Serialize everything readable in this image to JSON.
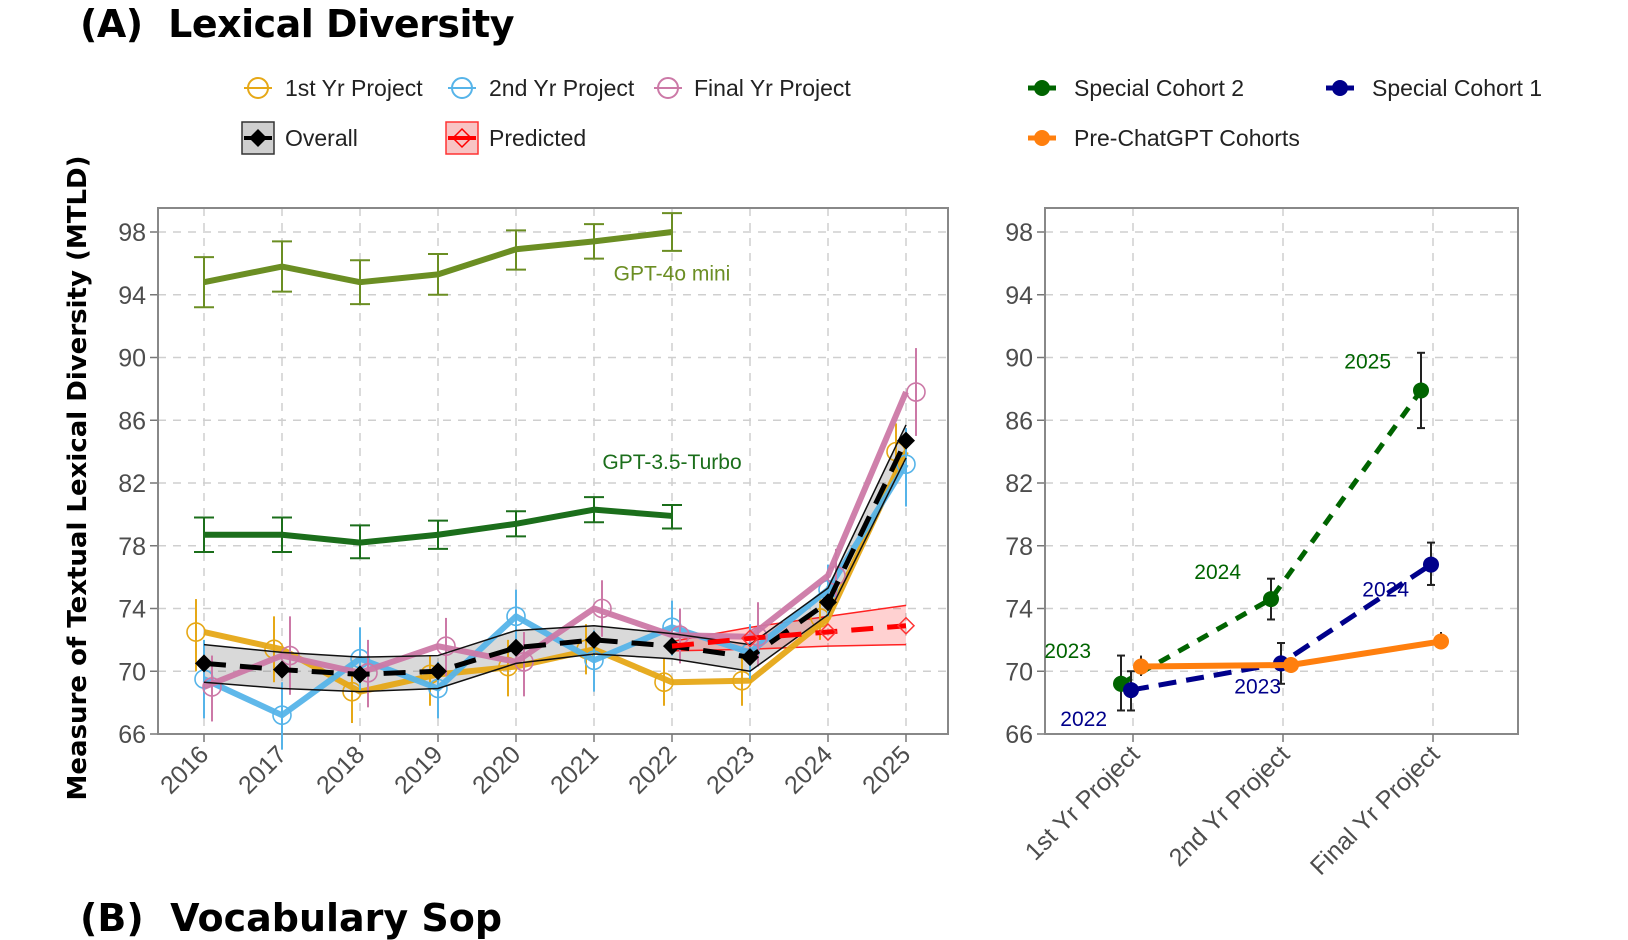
{
  "figure": {
    "title": "(A)  Lexical Diversity",
    "next_panel_title_partial": "(B)  Vocabulary Sop"
  },
  "legend": {
    "left": [
      {
        "label": "1st Yr Project",
        "color": "#E6A817",
        "marker": "open-circle"
      },
      {
        "label": "2nd Yr Project",
        "color": "#56B4E9",
        "marker": "open-circle"
      },
      {
        "label": "Final Yr Project",
        "color": "#CC79A7",
        "marker": "open-circle"
      },
      {
        "label": "Overall",
        "color": "#000000",
        "marker": "filled-diamond-band"
      },
      {
        "label": "Predicted",
        "color": "#FF0000",
        "marker": "open-diamond-band"
      }
    ],
    "right": [
      {
        "label": "Special Cohort 2",
        "color": "#006400",
        "marker": "filled-circle"
      },
      {
        "label": "Special Cohort 1",
        "color": "#00008B",
        "marker": "filled-circle"
      },
      {
        "label": "Pre-ChatGPT Cohorts",
        "color": "#FF7F0E",
        "marker": "filled-circle"
      }
    ]
  },
  "chart_data": [
    {
      "type": "line",
      "panel": "left",
      "title": "",
      "xlabel": "",
      "ylabel": "Measure of Textual Lexical Diversity (MTLD)",
      "ylim": [
        66,
        99.5
      ],
      "yticks": [
        66,
        70,
        74,
        78,
        82,
        86,
        90,
        94,
        98
      ],
      "x": [
        "2016",
        "2017",
        "2018",
        "2019",
        "2020",
        "2021",
        "2022",
        "2023",
        "2024",
        "2025"
      ],
      "grid": true,
      "series": [
        {
          "name": "GPT-4o mini",
          "color": "#6B8E23",
          "style": "solid",
          "values": [
            94.8,
            95.8,
            94.8,
            95.3,
            96.9,
            97.4,
            98.0,
            null,
            null,
            null
          ],
          "err_low": [
            93.2,
            94.2,
            93.4,
            94.0,
            95.6,
            96.3,
            96.8,
            null,
            null,
            null
          ],
          "err_high": [
            96.4,
            97.4,
            96.2,
            96.6,
            98.1,
            98.5,
            99.2,
            null,
            null,
            null
          ]
        },
        {
          "name": "GPT-3.5-Turbo",
          "color": "#1B6E1B",
          "style": "solid",
          "values": [
            78.7,
            78.7,
            78.2,
            78.7,
            79.4,
            80.3,
            79.9,
            null,
            null,
            null
          ],
          "err_low": [
            77.6,
            77.6,
            77.2,
            77.8,
            78.6,
            79.5,
            79.1,
            null,
            null,
            null
          ],
          "err_high": [
            79.8,
            79.8,
            79.3,
            79.6,
            80.2,
            81.1,
            80.6,
            null,
            null,
            null
          ]
        },
        {
          "name": "1st Yr Project",
          "color": "#E6A817",
          "style": "solid",
          "marker": "open-circle",
          "values": [
            72.5,
            71.4,
            68.7,
            69.8,
            70.3,
            71.4,
            69.3,
            69.4,
            73.4,
            84.0
          ],
          "err_low": [
            70.0,
            69.3,
            66.7,
            67.8,
            68.4,
            69.8,
            67.8,
            67.8,
            72.0,
            82.5
          ],
          "err_high": [
            74.6,
            73.5,
            70.7,
            71.0,
            72.0,
            73.0,
            70.8,
            71.0,
            74.8,
            85.8
          ]
        },
        {
          "name": "2nd Yr Project",
          "color": "#56B4E9",
          "style": "solid",
          "marker": "open-circle",
          "values": [
            69.5,
            67.2,
            70.8,
            68.9,
            73.5,
            70.7,
            72.8,
            71.2,
            75.2,
            83.2
          ],
          "err_low": [
            67.0,
            65.0,
            68.8,
            67.0,
            71.8,
            68.7,
            71.0,
            69.5,
            73.5,
            80.5
          ],
          "err_high": [
            72.0,
            69.3,
            72.8,
            70.6,
            75.2,
            72.6,
            74.5,
            73.0,
            76.8,
            85.5
          ]
        },
        {
          "name": "Final Yr Project",
          "color": "#CC79A7",
          "style": "solid",
          "marker": "open-circle",
          "values": [
            69.0,
            71.0,
            69.9,
            71.6,
            70.6,
            74.0,
            72.3,
            72.2,
            76.1,
            87.8
          ],
          "err_low": [
            66.8,
            68.5,
            67.7,
            69.7,
            68.4,
            72.2,
            70.5,
            70.3,
            74.5,
            85.0
          ],
          "err_high": [
            71.0,
            73.5,
            72.0,
            73.4,
            72.5,
            75.8,
            74.0,
            74.4,
            77.8,
            90.6
          ]
        },
        {
          "name": "Overall",
          "color": "#000000",
          "style": "dashed",
          "marker": "filled-diamond",
          "values": [
            70.5,
            70.1,
            69.8,
            70.0,
            71.5,
            72.0,
            71.6,
            70.9,
            74.4,
            84.7
          ],
          "band_low": [
            69.3,
            68.9,
            68.7,
            68.9,
            70.5,
            71.1,
            70.8,
            70.0,
            73.6,
            83.6
          ],
          "band_high": [
            71.7,
            71.2,
            70.9,
            71.0,
            72.6,
            72.9,
            72.4,
            71.7,
            75.3,
            85.7
          ]
        },
        {
          "name": "Predicted",
          "color": "#FF0000",
          "style": "dashed",
          "marker": "open-diamond",
          "values": [
            null,
            null,
            null,
            null,
            null,
            null,
            71.6,
            72.1,
            72.5,
            72.9
          ],
          "band_low": [
            null,
            null,
            null,
            null,
            null,
            null,
            71.3,
            71.4,
            71.6,
            71.7
          ],
          "band_high": [
            null,
            null,
            null,
            null,
            null,
            null,
            71.9,
            72.8,
            73.5,
            74.2
          ]
        }
      ],
      "annotations": [
        {
          "text": "GPT-4o mini",
          "x": "2022",
          "y": 94.9,
          "color": "#6B8E23"
        },
        {
          "text": "GPT-3.5-Turbo",
          "x": "2022",
          "y": 82.9,
          "color": "#1B6E1B"
        }
      ]
    },
    {
      "type": "line",
      "panel": "right",
      "title": "",
      "xlabel": "",
      "ylabel": "",
      "ylim": [
        66,
        99.5
      ],
      "yticks": [
        66,
        70,
        74,
        78,
        82,
        86,
        90,
        94,
        98
      ],
      "categories": [
        "1st Yr Project",
        "2nd Yr Project",
        "Final Yr Project"
      ],
      "grid": true,
      "series": [
        {
          "name": "Special Cohort 2",
          "color": "#006400",
          "style": "dotted",
          "values": [
            69.2,
            74.6,
            87.9
          ],
          "err_low": [
            67.5,
            73.3,
            85.5
          ],
          "err_high": [
            71.0,
            75.9,
            90.3
          ],
          "point_labels": [
            "2023",
            "2024",
            "2025"
          ]
        },
        {
          "name": "Special Cohort 1",
          "color": "#00008B",
          "style": "dashed",
          "values": [
            68.8,
            70.5,
            76.8
          ],
          "err_low": [
            67.5,
            69.2,
            75.5
          ],
          "err_high": [
            70.0,
            71.8,
            78.2
          ],
          "point_labels": [
            "2022",
            "2023",
            "2024"
          ]
        },
        {
          "name": "Pre-ChatGPT Cohorts",
          "color": "#FF7F0E",
          "style": "solid",
          "values": [
            70.3,
            70.4,
            71.9
          ],
          "err_low": [
            69.7,
            69.9,
            71.4
          ],
          "err_high": [
            71.0,
            70.9,
            72.5
          ],
          "point_labels": []
        }
      ]
    }
  ]
}
